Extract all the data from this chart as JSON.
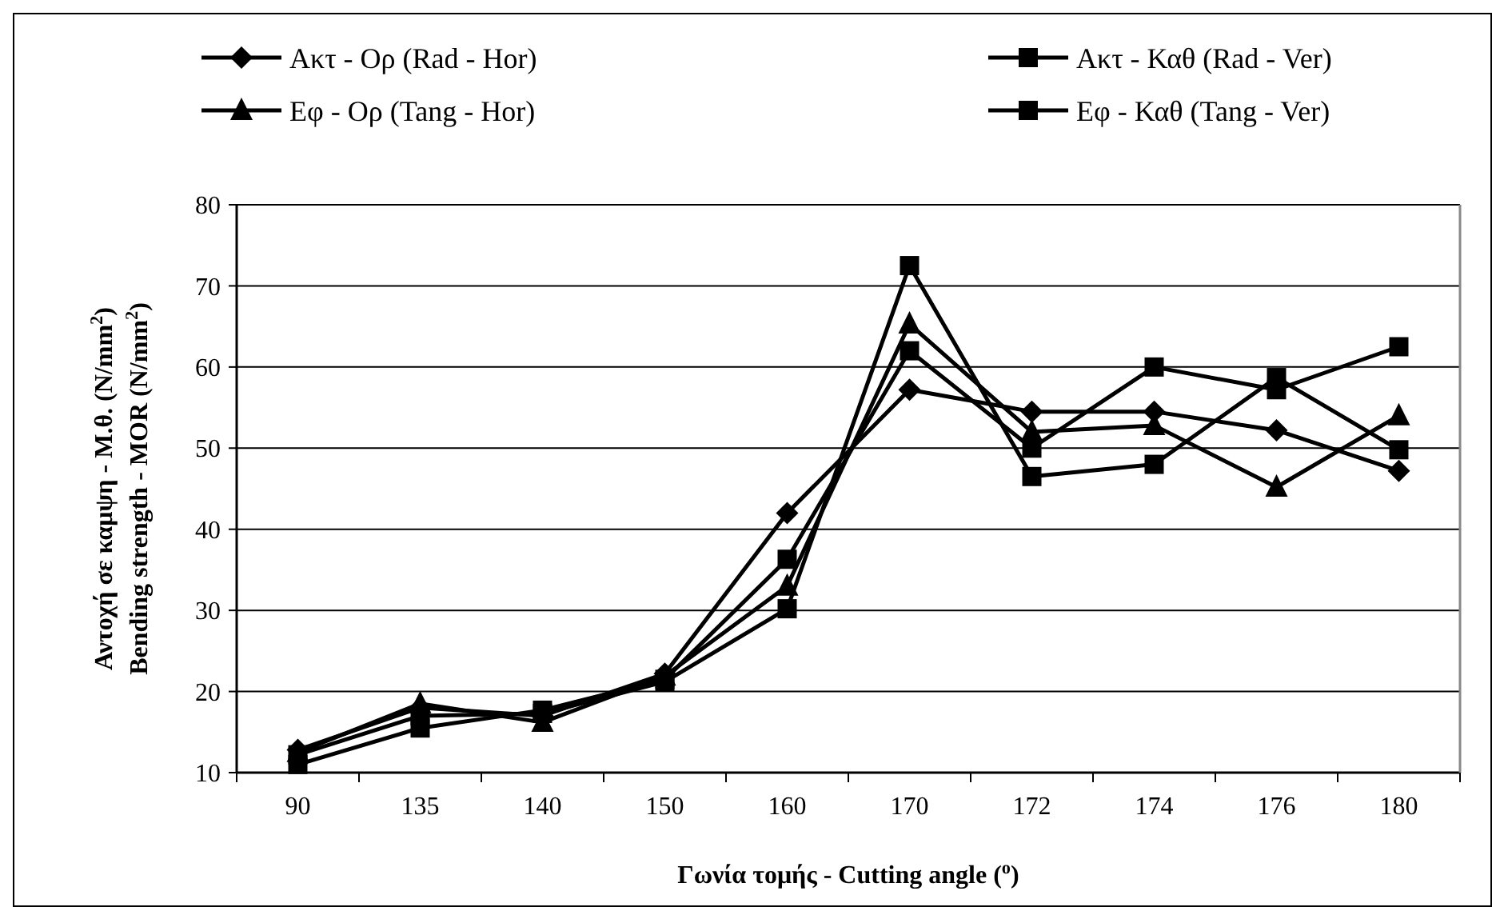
{
  "chart_data": {
    "type": "line",
    "xlabel": "Γωνία τομής - Cutting angle ($^{o}$)",
    "ylabel": "Αντοχή σε καμψη - Μ.θ. (N/mm$^{2}$)\nBending strength - MOR (N/mm$^{2}$)",
    "categories": [
      "90",
      "135",
      "140",
      "150",
      "160",
      "170",
      "172",
      "174",
      "176",
      "180"
    ],
    "series": [
      {
        "name": "Ακτ - Ορ (Rad - Hor)",
        "color": "#000000",
        "marker": "diamond",
        "values": [
          12.8,
          18,
          17,
          22.2,
          42,
          57.2,
          54.5,
          54.5,
          52.2,
          47.2
        ]
      },
      {
        "name": "Ακτ - Καθ (Rad - Ver)",
        "color": "#000000",
        "marker": "square",
        "values": [
          11,
          15.5,
          17.7,
          21.5,
          36.3,
          62,
          50,
          60,
          57.2,
          62.5
        ]
      },
      {
        "name": "Εφ - Ορ (Tang - Hor)",
        "color": "#000000",
        "marker": "triangle",
        "values": [
          12.5,
          18.5,
          16.2,
          21.9,
          33,
          65.3,
          52,
          52.8,
          45.2,
          54
        ]
      },
      {
        "name": "Εφ - Καθ (Tang - Ver)",
        "color": "#000000",
        "marker": "square",
        "values": [
          12.2,
          17,
          17.3,
          21.2,
          30.2,
          72.5,
          46.5,
          48,
          58.7,
          49.8
        ]
      }
    ],
    "ylim": [
      10,
      80
    ],
    "yticks": [
      10,
      20,
      30,
      40,
      50,
      60,
      70,
      80
    ],
    "grid": "y",
    "legend": "top",
    "line_style": "solid"
  }
}
